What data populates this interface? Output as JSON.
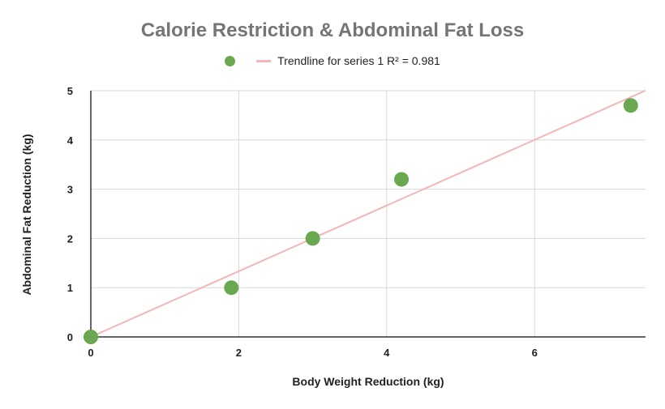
{
  "chart_data": {
    "type": "scatter",
    "title": "Calorie Restriction & Abdominal Fat Loss",
    "xlabel": "Body Weight Reduction (kg)",
    "ylabel": "Abdominal Fat Reduction (kg)",
    "xlim": [
      0,
      7.5
    ],
    "ylim": [
      0,
      5
    ],
    "xticks": [
      0,
      2,
      4,
      6
    ],
    "yticks": [
      0,
      1,
      2,
      3,
      4,
      5
    ],
    "grid": true,
    "legend_position": "top",
    "series": [
      {
        "x": [
          0,
          1.9,
          3.0,
          4.2,
          7.3
        ],
        "y": [
          0,
          1.0,
          2.0,
          3.2,
          4.7
        ],
        "color": "#6aa84f"
      }
    ],
    "trendline": {
      "label": "Trendline for series 1 R² = 0.981",
      "intercept": 0,
      "slope": 0.667,
      "color": "#f4b6b6"
    }
  }
}
